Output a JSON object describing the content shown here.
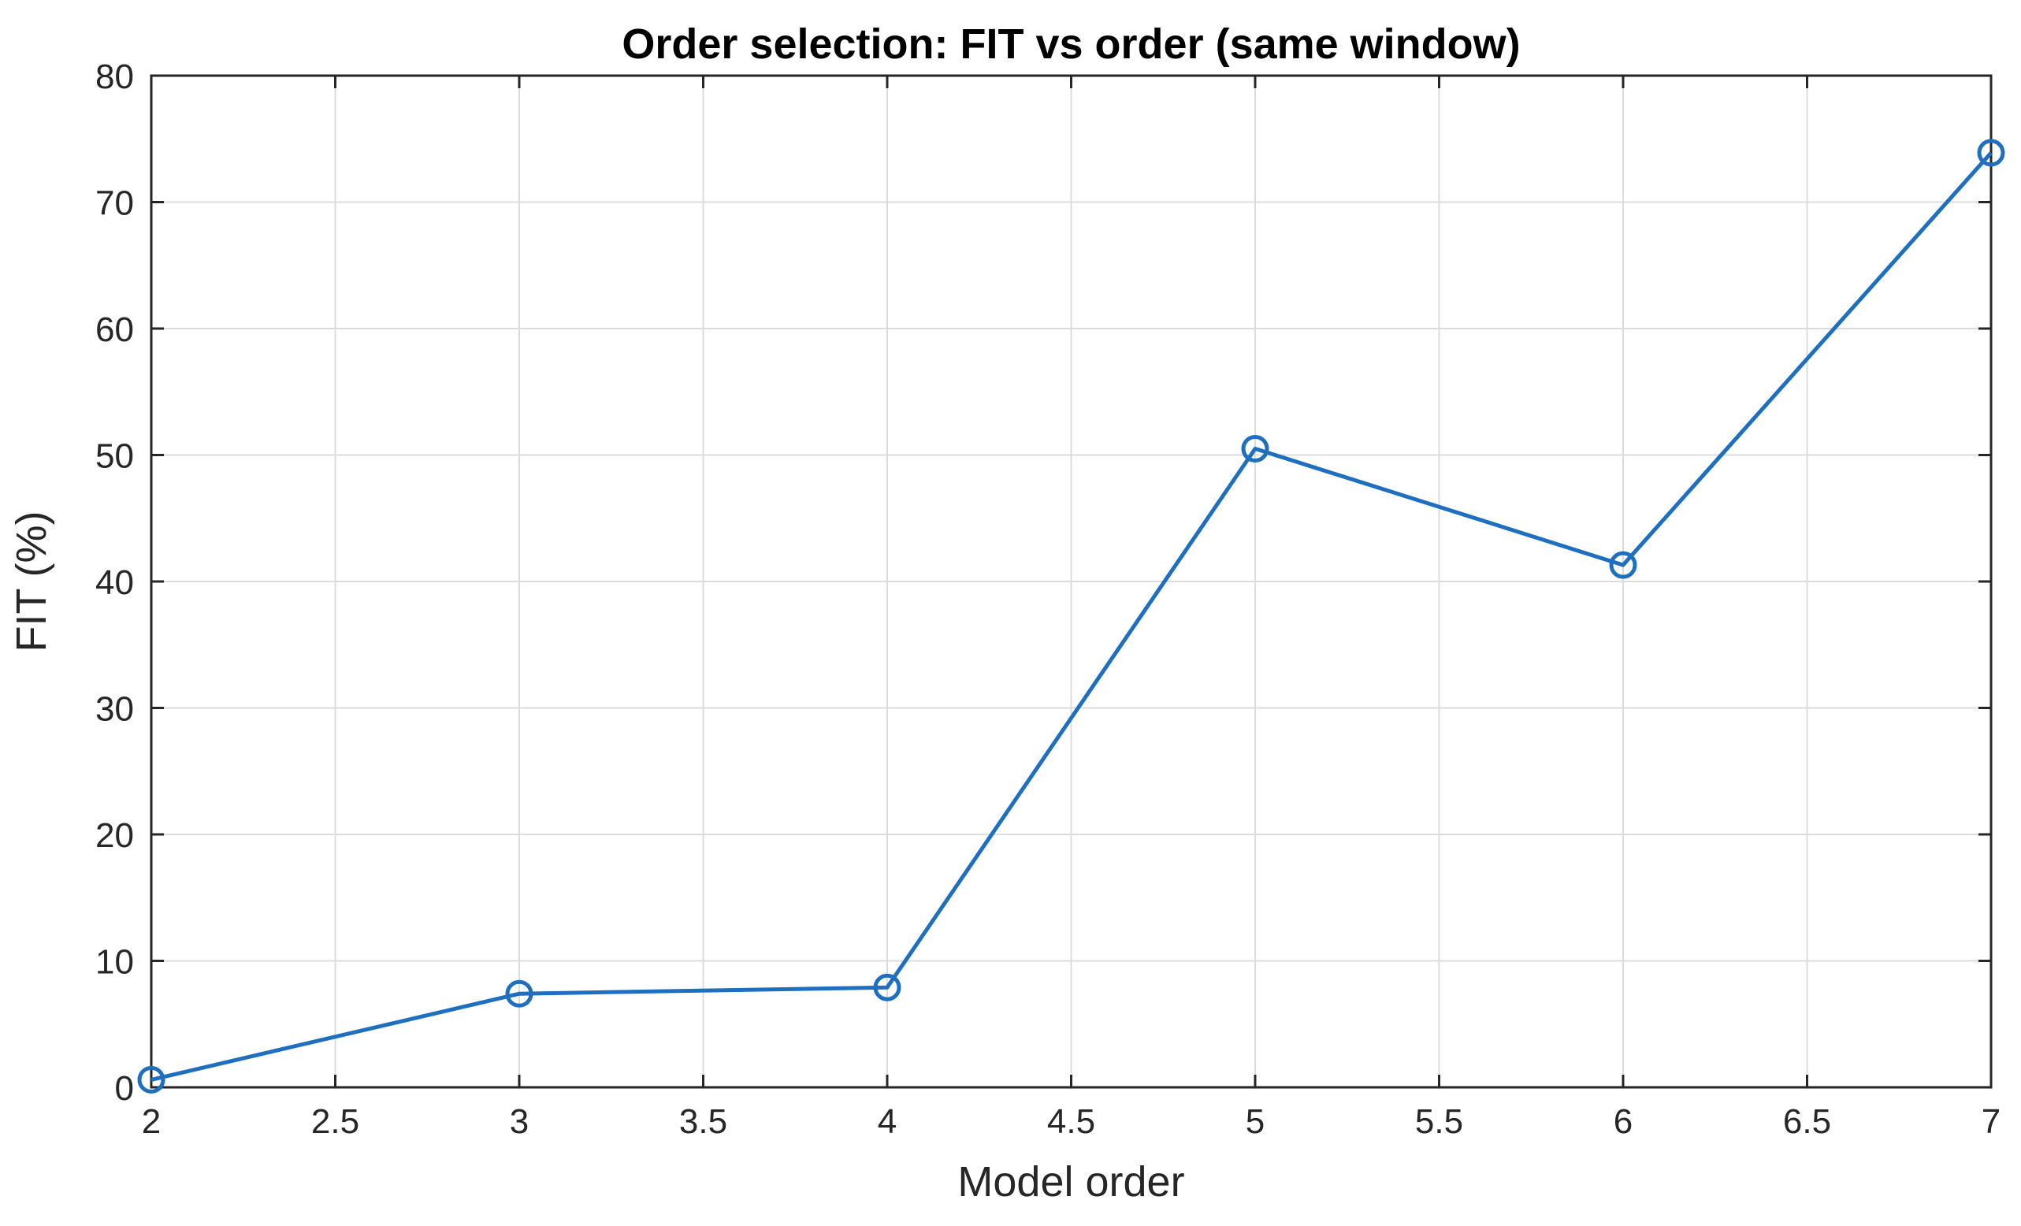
{
  "chart_data": {
    "type": "line",
    "title": "Order selection: FIT vs order (same window)",
    "xlabel": "Model order",
    "ylabel": "FIT (%)",
    "xlim": [
      2,
      7
    ],
    "ylim": [
      0,
      80
    ],
    "xticks": [
      "2",
      "2.5",
      "3",
      "3.5",
      "4",
      "4.5",
      "5",
      "5.5",
      "6",
      "6.5",
      "7"
    ],
    "yticks": [
      "0",
      "10",
      "20",
      "30",
      "40",
      "50",
      "60",
      "70",
      "80"
    ],
    "grid": true,
    "marker": "circle",
    "color": "#1f6fc0",
    "x": [
      2,
      3,
      4,
      5,
      6,
      7
    ],
    "y": [
      0.6,
      7.4,
      7.9,
      50.5,
      41.3,
      73.9
    ]
  }
}
